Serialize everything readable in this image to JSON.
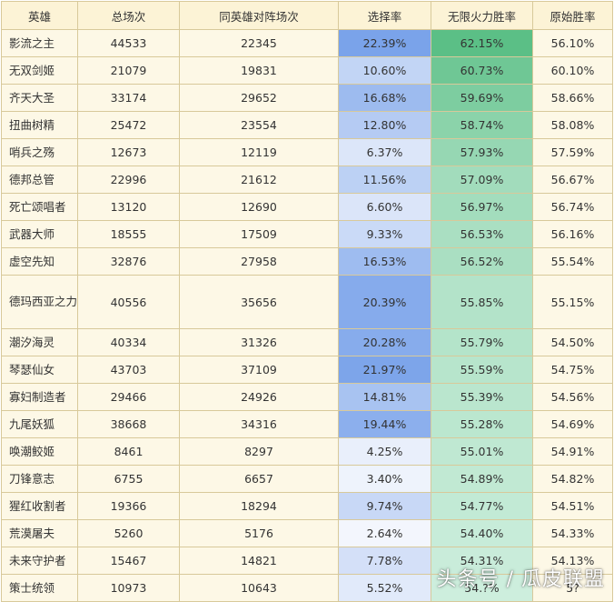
{
  "headers": [
    "英雄",
    "总场次",
    "同英雄对阵场次",
    "选择率",
    "无限火力胜率",
    "原始胜率"
  ],
  "rows": [
    {
      "hero": "影流之主",
      "total": "44533",
      "same": "22345",
      "pick": "22.39%",
      "wr": "62.15%",
      "orig": "56.10%"
    },
    {
      "hero": "无双剑姬",
      "total": "21079",
      "same": "19831",
      "pick": "10.60%",
      "wr": "60.73%",
      "orig": "60.10%"
    },
    {
      "hero": "齐天大圣",
      "total": "33174",
      "same": "29652",
      "pick": "16.68%",
      "wr": "59.69%",
      "orig": "58.66%"
    },
    {
      "hero": "扭曲树精",
      "total": "25472",
      "same": "23554",
      "pick": "12.80%",
      "wr": "58.74%",
      "orig": "58.08%"
    },
    {
      "hero": "哨兵之殇",
      "total": "12673",
      "same": "12119",
      "pick": "6.37%",
      "wr": "57.93%",
      "orig": "57.59%"
    },
    {
      "hero": "德邦总管",
      "total": "22996",
      "same": "21612",
      "pick": "11.56%",
      "wr": "57.09%",
      "orig": "56.67%"
    },
    {
      "hero": "死亡颂唱者",
      "total": "13120",
      "same": "12690",
      "pick": "6.60%",
      "wr": "56.97%",
      "orig": "56.74%"
    },
    {
      "hero": "武器大师",
      "total": "18555",
      "same": "17509",
      "pick": "9.33%",
      "wr": "56.53%",
      "orig": "56.16%"
    },
    {
      "hero": "虚空先知",
      "total": "32876",
      "same": "27958",
      "pick": "16.53%",
      "wr": "56.52%",
      "orig": "55.54%"
    },
    {
      "hero": "德玛西亚之力",
      "total": "40556",
      "same": "35656",
      "pick": "20.39%",
      "wr": "55.85%",
      "orig": "55.15%"
    },
    {
      "hero": "潮汐海灵",
      "total": "40334",
      "same": "31326",
      "pick": "20.28%",
      "wr": "55.79%",
      "orig": "54.50%"
    },
    {
      "hero": "琴瑟仙女",
      "total": "43703",
      "same": "37109",
      "pick": "21.97%",
      "wr": "55.59%",
      "orig": "54.75%"
    },
    {
      "hero": "寡妇制造者",
      "total": "29466",
      "same": "24926",
      "pick": "14.81%",
      "wr": "55.39%",
      "orig": "54.56%"
    },
    {
      "hero": "九尾妖狐",
      "total": "38668",
      "same": "34316",
      "pick": "19.44%",
      "wr": "55.28%",
      "orig": "54.69%"
    },
    {
      "hero": "唤潮鲛姬",
      "total": "8461",
      "same": "8297",
      "pick": "4.25%",
      "wr": "55.01%",
      "orig": "54.91%"
    },
    {
      "hero": "刀锋意志",
      "total": "6755",
      "same": "6657",
      "pick": "3.40%",
      "wr": "54.89%",
      "orig": "54.82%"
    },
    {
      "hero": "猩红收割者",
      "total": "19366",
      "same": "18294",
      "pick": "9.74%",
      "wr": "54.77%",
      "orig": "54.51%"
    },
    {
      "hero": "荒漠屠夫",
      "total": "5260",
      "same": "5176",
      "pick": "2.64%",
      "wr": "54.40%",
      "orig": "54.33%"
    },
    {
      "hero": "未来守护者",
      "total": "15467",
      "same": "14821",
      "pick": "7.78%",
      "wr": "54.31%",
      "orig": "54.13%"
    },
    {
      "hero": "策士统领",
      "total": "10973",
      "same": "10643",
      "pick": "5.52%",
      "wr": "54.?%",
      "orig": "5?"
    }
  ],
  "watermark": "头条号 / 瓜皮联盟",
  "colors": {
    "header_bg": "#fcf3d6",
    "cell_bg": "#fdf8e6",
    "border": "#d8c99a",
    "pick_high": "#7aa3ea",
    "pick_low": "#f3f6fd",
    "wr_high": "#5bbf86",
    "wr_low": "#cdeedd"
  }
}
